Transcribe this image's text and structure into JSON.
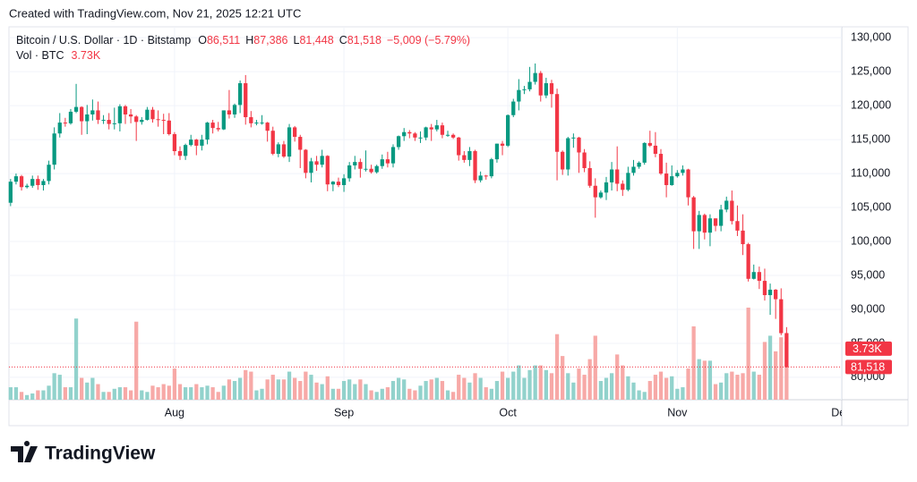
{
  "created": "Created with TradingView.com, Nov 21, 2025 12:21 UTC",
  "brand": "TradingView",
  "chart_data": {
    "type": "candlestick",
    "title": "Bitcoin / U.S. Dollar · 1D · Bitstamp",
    "ohlc_prefixes": [
      "O",
      "H",
      "L",
      "C"
    ],
    "ohlc_labels": [
      "86,511",
      "87,386",
      "81,448",
      "81,518"
    ],
    "change_label": "−5,009 (−5.79%)",
    "up_color": "#089981",
    "down_color": "#f23645",
    "volume_up_color": "#92d2cc",
    "volume_down_color": "#f7a9a7",
    "grid": true,
    "ylim": [
      76700,
      131600
    ],
    "yticks": [
      {
        "value": 80000,
        "label": "80,000"
      },
      {
        "value": 85000,
        "label": "85,000"
      },
      {
        "value": 90000,
        "label": "90,000"
      },
      {
        "value": 95000,
        "label": "95,000"
      },
      {
        "value": 100000,
        "label": "100,000"
      },
      {
        "value": 105000,
        "label": "105,000"
      },
      {
        "value": 110000,
        "label": "110,000"
      },
      {
        "value": 115000,
        "label": "115,000"
      },
      {
        "value": 120000,
        "label": "120,000"
      },
      {
        "value": 125000,
        "label": "125,000"
      },
      {
        "value": 130000,
        "label": "130,000"
      }
    ],
    "xlim": [
      -0.3,
      152.1
    ],
    "xticks": [
      {
        "value": 30,
        "label": "Aug"
      },
      {
        "value": 61,
        "label": "Sep"
      },
      {
        "value": 91,
        "label": "Oct"
      },
      {
        "value": 122,
        "label": "Nov"
      },
      {
        "value": 152,
        "label": "Dec"
      }
    ],
    "last_price_label": "81,518",
    "candles": [
      [
        105700,
        109200,
        105200,
        108800
      ],
      [
        108800,
        110000,
        108400,
        109600
      ],
      [
        109600,
        109800,
        107500,
        108000
      ],
      [
        108000,
        108500,
        107800,
        108200
      ],
      [
        108200,
        109700,
        107900,
        109200
      ],
      [
        109200,
        109700,
        107600,
        108300
      ],
      [
        108300,
        109200,
        107500,
        108900
      ],
      [
        108900,
        111900,
        108400,
        111300
      ],
      [
        111300,
        116800,
        110600,
        115900
      ],
      [
        115900,
        118900,
        115300,
        117500
      ],
      [
        117500,
        118200,
        116900,
        117400
      ],
      [
        117400,
        119500,
        117200,
        119100
      ],
      [
        119100,
        123200,
        118900,
        119800
      ],
      [
        119800,
        119900,
        115700,
        117700
      ],
      [
        117700,
        120100,
        115800,
        118700
      ],
      [
        118700,
        120900,
        117800,
        119300
      ],
      [
        119300,
        120600,
        117300,
        117900
      ],
      [
        117900,
        118600,
        117300,
        117900
      ],
      [
        117900,
        118900,
        116500,
        117300
      ],
      [
        117300,
        119700,
        116500,
        117400
      ],
      [
        117400,
        120200,
        116200,
        119900
      ],
      [
        119900,
        120100,
        117300,
        118700
      ],
      [
        118700,
        119500,
        117400,
        118400
      ],
      [
        118400,
        118600,
        114800,
        117600
      ],
      [
        117600,
        118300,
        117200,
        117900
      ],
      [
        117900,
        119800,
        117800,
        119400
      ],
      [
        119400,
        119800,
        117500,
        118000
      ],
      [
        118000,
        119300,
        116900,
        117900
      ],
      [
        117900,
        118800,
        115800,
        117800
      ],
      [
        117800,
        118900,
        115600,
        115800
      ],
      [
        115800,
        116100,
        112700,
        113300
      ],
      [
        113300,
        114000,
        112000,
        112600
      ],
      [
        112600,
        114400,
        112000,
        114200
      ],
      [
        114200,
        115700,
        114000,
        115000
      ],
      [
        115000,
        115100,
        112700,
        114100
      ],
      [
        114100,
        115700,
        113400,
        115000
      ],
      [
        115000,
        117600,
        114300,
        117500
      ],
      [
        117500,
        117900,
        115900,
        116700
      ],
      [
        116700,
        117600,
        116200,
        116500
      ],
      [
        116500,
        119300,
        116400,
        119300
      ],
      [
        119300,
        122300,
        118100,
        118700
      ],
      [
        118700,
        120300,
        118200,
        120100
      ],
      [
        120100,
        123700,
        118900,
        123300
      ],
      [
        123300,
        124500,
        117200,
        118300
      ],
      [
        118300,
        119200,
        116800,
        117400
      ],
      [
        117400,
        117900,
        117100,
        117500
      ],
      [
        117500,
        118600,
        117200,
        117500
      ],
      [
        117500,
        117600,
        114700,
        116300
      ],
      [
        116300,
        116900,
        112700,
        112900
      ],
      [
        112900,
        114600,
        112400,
        114300
      ],
      [
        114300,
        114800,
        112300,
        112500
      ],
      [
        112500,
        117300,
        111700,
        116800
      ],
      [
        116800,
        117000,
        114700,
        115400
      ],
      [
        115400,
        115700,
        110800,
        113500
      ],
      [
        113500,
        113600,
        109300,
        110100
      ],
      [
        110100,
        112300,
        108700,
        111800
      ],
      [
        111800,
        112600,
        110400,
        111300
      ],
      [
        111300,
        113500,
        110900,
        112600
      ],
      [
        112600,
        112700,
        107400,
        108400
      ],
      [
        108400,
        108900,
        107400,
        108800
      ],
      [
        108800,
        109400,
        108000,
        108300
      ],
      [
        108300,
        109900,
        107300,
        109300
      ],
      [
        109300,
        111700,
        108800,
        111200
      ],
      [
        111200,
        112600,
        110600,
        111700
      ],
      [
        111700,
        112200,
        109400,
        110700
      ],
      [
        110700,
        113400,
        110300,
        110700
      ],
      [
        110700,
        111300,
        110000,
        110200
      ],
      [
        110200,
        111300,
        110000,
        111100
      ],
      [
        111100,
        112800,
        110700,
        112100
      ],
      [
        112100,
        113200,
        110900,
        111500
      ],
      [
        111500,
        114300,
        110900,
        113900
      ],
      [
        113900,
        115600,
        113500,
        115500
      ],
      [
        115500,
        116700,
        114800,
        116100
      ],
      [
        116100,
        116400,
        115200,
        115900
      ],
      [
        115900,
        116100,
        114800,
        115300
      ],
      [
        115300,
        116200,
        114500,
        115300
      ],
      [
        115300,
        116900,
        114900,
        116800
      ],
      [
        116800,
        117300,
        114800,
        116500
      ],
      [
        116500,
        117900,
        116200,
        117100
      ],
      [
        117100,
        117500,
        115200,
        115700
      ],
      [
        115700,
        116300,
        115400,
        115700
      ],
      [
        115700,
        115900,
        115100,
        115300
      ],
      [
        115300,
        115400,
        111900,
        112700
      ],
      [
        112700,
        113300,
        111600,
        112000
      ],
      [
        112000,
        113900,
        111100,
        113300
      ],
      [
        113300,
        113500,
        108600,
        109000
      ],
      [
        109000,
        110300,
        108700,
        109700
      ],
      [
        109700,
        109800,
        109100,
        109600
      ],
      [
        109600,
        112300,
        109300,
        112100
      ],
      [
        112100,
        114400,
        111600,
        114400
      ],
      [
        114400,
        114800,
        112700,
        114100
      ],
      [
        114100,
        118700,
        113900,
        118600
      ],
      [
        118600,
        121000,
        118300,
        120600
      ],
      [
        120600,
        123900,
        119300,
        122300
      ],
      [
        122300,
        122900,
        121700,
        122400
      ],
      [
        122400,
        125700,
        122100,
        123500
      ],
      [
        123500,
        126200,
        123100,
        124800
      ],
      [
        124800,
        125100,
        120600,
        121500
      ],
      [
        121500,
        124100,
        121100,
        123300
      ],
      [
        123300,
        123800,
        119700,
        121700
      ],
      [
        121700,
        122500,
        109000,
        113200
      ],
      [
        113200,
        113400,
        109800,
        110600
      ],
      [
        110600,
        115400,
        109700,
        115200
      ],
      [
        115200,
        115900,
        113800,
        115300
      ],
      [
        115300,
        115400,
        110100,
        113100
      ],
      [
        113100,
        113600,
        110200,
        110800
      ],
      [
        110800,
        111800,
        107900,
        108200
      ],
      [
        108200,
        109300,
        103500,
        106500
      ],
      [
        106500,
        107500,
        106300,
        107200
      ],
      [
        107200,
        109500,
        106100,
        108700
      ],
      [
        108700,
        111700,
        107500,
        110600
      ],
      [
        110600,
        114000,
        107400,
        108500
      ],
      [
        108500,
        109000,
        106700,
        107600
      ],
      [
        107600,
        111000,
        107400,
        110100
      ],
      [
        110100,
        112000,
        109700,
        111000
      ],
      [
        111000,
        111800,
        110700,
        111600
      ],
      [
        111600,
        114600,
        111300,
        114500
      ],
      [
        114500,
        116300,
        113900,
        114100
      ],
      [
        114100,
        116100,
        112400,
        112900
      ],
      [
        112900,
        113600,
        109800,
        110000
      ],
      [
        110000,
        111600,
        106500,
        108300
      ],
      [
        108300,
        111200,
        108200,
        109600
      ],
      [
        109600,
        110500,
        109400,
        110100
      ],
      [
        110100,
        111200,
        109700,
        110600
      ],
      [
        110600,
        110700,
        105300,
        106500
      ],
      [
        106500,
        106700,
        98900,
        101500
      ],
      [
        101500,
        104500,
        98900,
        103900
      ],
      [
        103900,
        104100,
        100300,
        101300
      ],
      [
        101300,
        104000,
        99300,
        103400
      ],
      [
        103400,
        103400,
        101500,
        102300
      ],
      [
        102300,
        105400,
        101500,
        104700
      ],
      [
        104700,
        106600,
        104300,
        106000
      ],
      [
        106000,
        107500,
        102500,
        103000
      ],
      [
        103000,
        105300,
        100800,
        101600
      ],
      [
        101600,
        104000,
        98000,
        99600
      ],
      [
        99600,
        99800,
        94100,
        94500
      ],
      [
        94500,
        96600,
        94400,
        95500
      ],
      [
        95500,
        96300,
        93000,
        94200
      ],
      [
        94200,
        96000,
        91300,
        92100
      ],
      [
        92100,
        93800,
        89200,
        92900
      ],
      [
        92900,
        93000,
        88600,
        91500
      ],
      [
        91500,
        93100,
        86200,
        86500
      ],
      [
        86511,
        87386,
        81448,
        81518
      ]
    ],
    "volume": {
      "name": "Vol · BTC",
      "value_label": "3.73K",
      "values": [
        0.8,
        0.8,
        0.5,
        0.3,
        0.4,
        0.6,
        0.6,
        0.9,
        1.7,
        1.6,
        0.8,
        0.8,
        5.2,
        1.4,
        1.1,
        1.4,
        1.0,
        0.5,
        0.5,
        0.7,
        0.8,
        0.8,
        0.6,
        5.0,
        0.6,
        0.5,
        0.9,
        0.8,
        1.0,
        0.9,
        2.0,
        1.0,
        0.8,
        0.8,
        1.0,
        0.8,
        0.9,
        0.8,
        0.5,
        0.9,
        1.3,
        1.2,
        1.4,
        1.9,
        1.8,
        0.6,
        0.7,
        1.3,
        1.6,
        1.3,
        1.3,
        1.8,
        1.4,
        1.2,
        1.8,
        1.6,
        1.1,
        1.0,
        1.5,
        0.7,
        0.7,
        1.2,
        1.3,
        1.0,
        1.3,
        1.0,
        0.6,
        0.5,
        0.7,
        0.8,
        1.2,
        1.4,
        1.3,
        0.7,
        0.6,
        0.9,
        1.2,
        1.3,
        1.4,
        1.2,
        0.6,
        0.5,
        1.6,
        1.4,
        1.1,
        1.7,
        1.4,
        0.8,
        0.7,
        1.2,
        1.8,
        1.4,
        1.8,
        2.2,
        1.4,
        1.9,
        2.2,
        2.2,
        1.9,
        1.7,
        4.2,
        2.8,
        1.7,
        1.1,
        2.0,
        1.6,
        2.6,
        4.1,
        1.2,
        1.4,
        1.7,
        2.9,
        2.2,
        1.5,
        1.1,
        0.6,
        0.5,
        1.2,
        1.6,
        1.8,
        1.4,
        1.5,
        0.7,
        0.8,
        2.0,
        4.7,
        2.6,
        2.5,
        2.5,
        1.0,
        1.1,
        1.7,
        1.8,
        1.6,
        1.7,
        5.9,
        1.8,
        1.6,
        3.7,
        4.1,
        3.1,
        4.0,
        3.73
      ]
    }
  }
}
